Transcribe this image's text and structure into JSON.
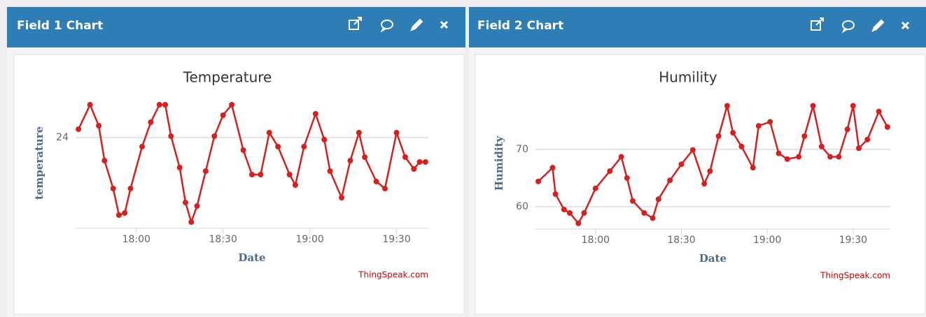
{
  "panels": [
    {
      "header": "Field 1 Chart"
    },
    {
      "header": "Field 2 Chart"
    }
  ],
  "chart_data": [
    {
      "type": "line",
      "title": "Temperature",
      "x_label": "Date",
      "y_label": "temperature",
      "credit": "ThingSpeak.com",
      "x": [
        "17:40",
        "17:44",
        "17:47",
        "17:49",
        "17:52",
        "17:54",
        "17:56",
        "17:58",
        "18:02",
        "18:05",
        "18:08",
        "18:10",
        "18:12",
        "18:15",
        "18:17",
        "18:19",
        "18:21",
        "18:24",
        "18:27",
        "18:30",
        "18:33",
        "18:37",
        "18:40",
        "18:43",
        "18:46",
        "18:49",
        "18:53",
        "18:55",
        "18:58",
        "19:02",
        "19:05",
        "19:07",
        "19:11",
        "19:14",
        "19:17",
        "19:19",
        "19:23",
        "19:26",
        "19:30",
        "19:33",
        "19:36",
        "19:38",
        "19:40"
      ],
      "series": [
        {
          "name": "temperature",
          "color": "#d62020",
          "values": [
            24.12,
            24.47,
            24.17,
            23.67,
            23.27,
            22.89,
            22.92,
            23.27,
            23.87,
            24.22,
            24.47,
            24.47,
            24.02,
            23.57,
            23.07,
            22.79,
            23.02,
            23.52,
            24.02,
            24.32,
            24.47,
            23.82,
            23.47,
            23.47,
            24.07,
            23.87,
            23.47,
            23.32,
            23.87,
            24.34,
            23.97,
            23.52,
            23.14,
            23.67,
            24.07,
            23.72,
            23.37,
            23.27,
            24.07,
            23.72,
            23.55,
            23.65,
            23.65
          ]
        }
      ],
      "xlim": [
        "17:39",
        "19:41"
      ],
      "xticks": [
        "18:00",
        "18:30",
        "19:00",
        "19:30"
      ],
      "ylim": [
        22.7,
        24.57
      ],
      "yticks": [
        24
      ],
      "grid": true
    },
    {
      "type": "line",
      "title": "Humility",
      "x_label": "Date",
      "y_label": "Humidity",
      "credit": "ThingSpeak.com",
      "x": [
        "17:40",
        "17:45",
        "17:46",
        "17:49",
        "17:51",
        "17:54",
        "17:56",
        "18:00",
        "18:05",
        "18:09",
        "18:11",
        "18:13",
        "18:17",
        "18:20",
        "18:22",
        "18:26",
        "18:30",
        "18:34",
        "18:38",
        "18:40",
        "18:43",
        "18:46",
        "18:48",
        "18:51",
        "18:55",
        "18:57",
        "19:01",
        "19:04",
        "19:07",
        "19:11",
        "19:13",
        "19:16",
        "19:19",
        "19:22",
        "19:25",
        "19:28",
        "19:30",
        "19:32",
        "19:35",
        "19:39",
        "19:42"
      ],
      "series": [
        {
          "name": "Humidity",
          "color": "#d62020",
          "values": [
            64.4,
            66.8,
            62.2,
            59.5,
            58.9,
            57.1,
            58.9,
            63.2,
            66.2,
            68.7,
            65.0,
            61.0,
            58.9,
            58.0,
            61.3,
            64.6,
            67.4,
            69.9,
            64.0,
            66.2,
            72.3,
            77.6,
            72.9,
            70.5,
            66.8,
            74.1,
            74.8,
            69.3,
            68.3,
            68.7,
            72.3,
            77.6,
            70.5,
            68.7,
            68.7,
            73.5,
            77.6,
            70.2,
            71.7,
            76.6,
            73.9
          ]
        }
      ],
      "xlim": [
        "17:39",
        "19:43"
      ],
      "xticks": [
        "18:00",
        "18:30",
        "19:00",
        "19:30"
      ],
      "ylim": [
        56.1,
        79.0
      ],
      "yticks": [
        60,
        70
      ],
      "grid": true
    }
  ]
}
